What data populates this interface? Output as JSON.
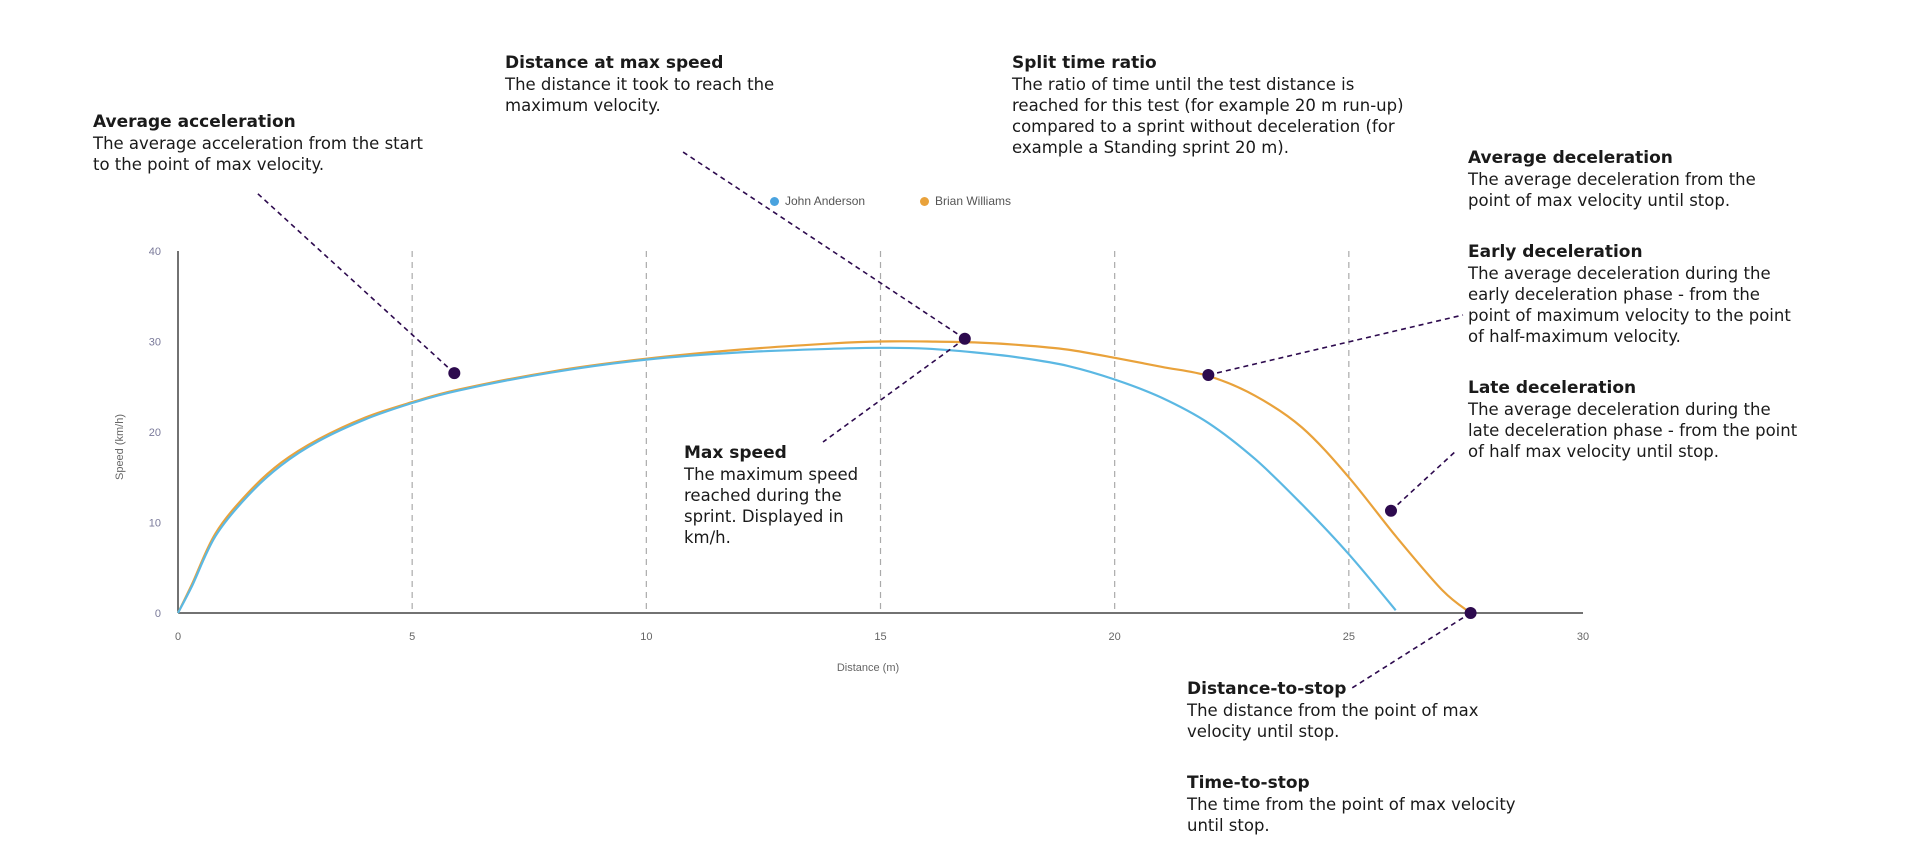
{
  "chart_data": {
    "type": "line",
    "title": "",
    "xlabel": "Distance (m)",
    "ylabel": "Speed (km/h)",
    "xlim": [
      0,
      30
    ],
    "ylim": [
      0,
      40
    ],
    "x_ticks": [
      0,
      5,
      10,
      15,
      20,
      25,
      30
    ],
    "y_ticks": [
      0,
      10,
      20,
      30,
      40
    ],
    "x_tick_labels": [
      "0",
      "5",
      "10",
      "15",
      "20",
      "25",
      "30"
    ],
    "y_tick_labels": [
      "0",
      "10",
      "20",
      "30",
      "40"
    ],
    "vertical_grid": true,
    "horizontal_grid": false,
    "legend_position": "top-center",
    "series": [
      {
        "name": "John Anderson",
        "color": "#5bb8e3",
        "points": [
          [
            0,
            0
          ],
          [
            0.3,
            3
          ],
          [
            0.8,
            8.5
          ],
          [
            1.5,
            13
          ],
          [
            2.2,
            16.3
          ],
          [
            3,
            19
          ],
          [
            4,
            21.4
          ],
          [
            5,
            23.2
          ],
          [
            6,
            24.6
          ],
          [
            8,
            26.6
          ],
          [
            10,
            28
          ],
          [
            12,
            28.8
          ],
          [
            14,
            29.2
          ],
          [
            15,
            29.3
          ],
          [
            16,
            29.2
          ],
          [
            17,
            28.8
          ],
          [
            18,
            28.2
          ],
          [
            19,
            27.3
          ],
          [
            20,
            25.8
          ],
          [
            21,
            23.8
          ],
          [
            22,
            21
          ],
          [
            23,
            17
          ],
          [
            24,
            12
          ],
          [
            25,
            6.5
          ],
          [
            26,
            0.3
          ]
        ]
      },
      {
        "name": "Brian Williams",
        "color": "#e9a23b",
        "points": [
          [
            0,
            0
          ],
          [
            0.3,
            3.2
          ],
          [
            0.8,
            8.8
          ],
          [
            1.5,
            13.3
          ],
          [
            2.2,
            16.6
          ],
          [
            3,
            19.2
          ],
          [
            4,
            21.6
          ],
          [
            5,
            23.3
          ],
          [
            6,
            24.7
          ],
          [
            8,
            26.7
          ],
          [
            10,
            28.1
          ],
          [
            12,
            29.1
          ],
          [
            14,
            29.8
          ],
          [
            15,
            30
          ],
          [
            16,
            30
          ],
          [
            17,
            29.9
          ],
          [
            18,
            29.6
          ],
          [
            19,
            29.1
          ],
          [
            20,
            28.2
          ],
          [
            21,
            27.2
          ],
          [
            22,
            26.2
          ],
          [
            23,
            24
          ],
          [
            24,
            20.5
          ],
          [
            25,
            15
          ],
          [
            26,
            8.5
          ],
          [
            27,
            2.5
          ],
          [
            27.6,
            0
          ]
        ]
      }
    ],
    "markers": [
      {
        "key": "avg_acc",
        "x": 5.9,
        "y": 26.5
      },
      {
        "key": "dist_max",
        "x": 16.8,
        "y": 30.3
      },
      {
        "key": "early_dec",
        "x": 22,
        "y": 26.3
      },
      {
        "key": "late_dec",
        "x": 25.9,
        "y": 11.3
      },
      {
        "key": "stop",
        "x": 27.6,
        "y": 0
      }
    ],
    "marker_color": "#2d0a4e"
  },
  "annotations": {
    "avg_acc": {
      "title": "Average acceleration",
      "desc": "The average acceleration from the start to the point of max velocity."
    },
    "dist_max": {
      "title": "Distance at max speed",
      "desc": "The distance it took to reach the maximum velocity."
    },
    "split": {
      "title": "Split time ratio",
      "desc": "The ratio of time until the test distance is reached for this test (for example 20 m run-up) compared to a sprint without deceleration (for example a Standing sprint 20 m)."
    },
    "avg_dec": {
      "title": "Average deceleration",
      "desc": "The average deceleration from the point of max velocity until stop."
    },
    "early_dec": {
      "title": "Early deceleration",
      "desc": "The average deceleration during the early deceleration phase - from the point of maximum velocity to the point of half-maximum velocity."
    },
    "late_dec": {
      "title": "Late deceleration",
      "desc": "The average deceleration during the late deceleration phase - from the point of half max velocity until stop."
    },
    "max_speed": {
      "title": "Max speed",
      "desc": "The maximum speed reached during the sprint. Displayed in km/h."
    },
    "dist_stop": {
      "title": "Distance-to-stop",
      "desc": "The distance from the point of max velocity until stop."
    },
    "time_stop": {
      "title": "Time-to-stop",
      "desc": "The time from the point of max velocity until stop."
    }
  }
}
